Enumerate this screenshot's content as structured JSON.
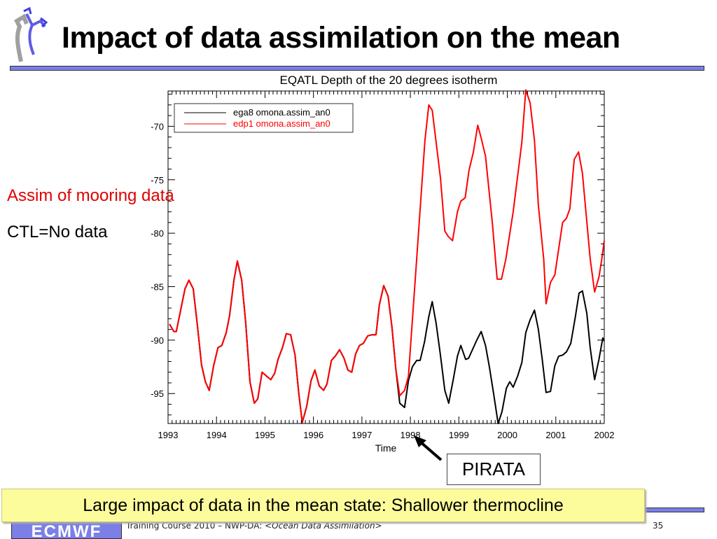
{
  "slide": {
    "title": "Impact of data assimilation on the mean",
    "label_assim": "Assim of mooring data",
    "label_ctl": "CTL=No data",
    "annotation": "PIRATA",
    "callout": "Large impact of data in the mean state: Shallower thermocline",
    "footer_prefix": "Training Course 2010 – NWP-DA: ",
    "footer_topic": "<Ocean Data Assimilation>",
    "page_number": "35",
    "logo_text": "ECMWF",
    "accent_color": "#7b7fe6"
  },
  "chart_data": {
    "type": "line",
    "title": "EQATL Depth of the 20 degrees isotherm",
    "xlabel": "Time",
    "ylabel": "",
    "xlim": [
      1993,
      2002
    ],
    "ylim": [
      -97.8,
      -66.7
    ],
    "xticks": [
      "1993",
      "1994",
      "1995",
      "1996",
      "1997",
      "1998",
      "1999",
      "2000",
      "2001",
      "2002"
    ],
    "yticks": [
      "-70",
      "-75",
      "-80",
      "-85",
      "-90",
      "-95"
    ],
    "grid": false,
    "legend_position": "top-left",
    "series": [
      {
        "name": "ega8 omona.assim_an0",
        "color": "#000000",
        "points": [
          [
            1993.03,
            -88.5
          ],
          [
            1993.12,
            -89.2
          ],
          [
            1993.17,
            -89.2
          ],
          [
            1993.26,
            -87.2
          ],
          [
            1993.35,
            -85.2
          ],
          [
            1993.43,
            -84.4
          ],
          [
            1993.52,
            -85.2
          ],
          [
            1993.61,
            -88.8
          ],
          [
            1993.69,
            -92.3
          ],
          [
            1993.77,
            -93.9
          ],
          [
            1993.85,
            -94.7
          ],
          [
            1993.94,
            -92.4
          ],
          [
            1994.03,
            -90.7
          ],
          [
            1994.11,
            -90.5
          ],
          [
            1994.2,
            -89.3
          ],
          [
            1994.27,
            -87.7
          ],
          [
            1994.36,
            -84.4
          ],
          [
            1994.43,
            -82.6
          ],
          [
            1994.52,
            -84.4
          ],
          [
            1994.6,
            -88.3
          ],
          [
            1994.69,
            -93.9
          ],
          [
            1994.78,
            -95.9
          ],
          [
            1994.85,
            -95.5
          ],
          [
            1994.94,
            -93.0
          ],
          [
            1995.04,
            -93.4
          ],
          [
            1995.12,
            -93.7
          ],
          [
            1995.2,
            -93.1
          ],
          [
            1995.27,
            -91.8
          ],
          [
            1995.36,
            -90.7
          ],
          [
            1995.44,
            -89.4
          ],
          [
            1995.53,
            -89.5
          ],
          [
            1995.62,
            -91.4
          ],
          [
            1995.7,
            -95.1
          ],
          [
            1995.77,
            -97.7
          ],
          [
            1995.86,
            -96.2
          ],
          [
            1995.95,
            -93.8
          ],
          [
            1996.03,
            -92.8
          ],
          [
            1996.12,
            -94.3
          ],
          [
            1996.21,
            -94.7
          ],
          [
            1996.28,
            -94.1
          ],
          [
            1996.37,
            -91.9
          ],
          [
            1996.45,
            -91.5
          ],
          [
            1996.54,
            -90.9
          ],
          [
            1996.63,
            -91.7
          ],
          [
            1996.71,
            -92.8
          ],
          [
            1996.79,
            -93.0
          ],
          [
            1996.87,
            -91.3
          ],
          [
            1996.95,
            -90.5
          ],
          [
            1997.03,
            -90.3
          ],
          [
            1997.12,
            -89.6
          ],
          [
            1997.21,
            -89.5
          ],
          [
            1997.29,
            -89.5
          ],
          [
            1997.36,
            -86.7
          ],
          [
            1997.45,
            -84.9
          ],
          [
            1997.54,
            -85.9
          ],
          [
            1997.62,
            -88.8
          ],
          [
            1997.7,
            -92.7
          ],
          [
            1997.78,
            -95.9
          ],
          [
            1997.88,
            -96.3
          ],
          [
            1997.96,
            -93.8
          ],
          [
            1998.04,
            -92.5
          ],
          [
            1998.13,
            -91.9
          ],
          [
            1998.2,
            -91.9
          ],
          [
            1998.29,
            -90.2
          ],
          [
            1998.38,
            -87.8
          ],
          [
            1998.45,
            -86.4
          ],
          [
            1998.53,
            -88.4
          ],
          [
            1998.62,
            -91.4
          ],
          [
            1998.71,
            -94.7
          ],
          [
            1998.79,
            -95.9
          ],
          [
            1998.88,
            -93.8
          ],
          [
            1998.97,
            -91.5
          ],
          [
            1999.04,
            -90.5
          ],
          [
            1999.14,
            -91.8
          ],
          [
            1999.2,
            -91.7
          ],
          [
            1999.29,
            -90.8
          ],
          [
            1999.37,
            -90.0
          ],
          [
            1999.46,
            -89.2
          ],
          [
            1999.55,
            -90.5
          ],
          [
            1999.63,
            -92.5
          ],
          [
            1999.72,
            -95.1
          ],
          [
            1999.81,
            -97.8
          ],
          [
            1999.89,
            -96.7
          ],
          [
            1999.98,
            -94.5
          ],
          [
            2000.05,
            -93.9
          ],
          [
            2000.12,
            -94.4
          ],
          [
            2000.21,
            -93.4
          ],
          [
            2000.3,
            -92.1
          ],
          [
            2000.38,
            -89.3
          ],
          [
            2000.47,
            -88.1
          ],
          [
            2000.56,
            -87.2
          ],
          [
            2000.64,
            -89.0
          ],
          [
            2000.72,
            -91.8
          ],
          [
            2000.8,
            -94.9
          ],
          [
            2000.89,
            -94.8
          ],
          [
            2000.98,
            -92.4
          ],
          [
            2001.06,
            -91.5
          ],
          [
            2001.14,
            -91.4
          ],
          [
            2001.22,
            -91.1
          ],
          [
            2001.31,
            -90.3
          ],
          [
            2001.4,
            -87.9
          ],
          [
            2001.48,
            -85.6
          ],
          [
            2001.55,
            -85.4
          ],
          [
            2001.64,
            -87.5
          ],
          [
            2001.71,
            -90.7
          ],
          [
            2001.8,
            -93.7
          ],
          [
            2001.89,
            -91.8
          ],
          [
            2001.97,
            -89.8
          ],
          [
            2002.0,
            -90.1
          ]
        ]
      },
      {
        "name": "edp1 omona.assim_an0",
        "color": "#ff0000",
        "points": [
          [
            1993.03,
            -88.5
          ],
          [
            1993.12,
            -89.2
          ],
          [
            1993.17,
            -89.2
          ],
          [
            1993.26,
            -87.2
          ],
          [
            1993.35,
            -85.2
          ],
          [
            1993.43,
            -84.4
          ],
          [
            1993.52,
            -85.2
          ],
          [
            1993.61,
            -88.8
          ],
          [
            1993.69,
            -92.3
          ],
          [
            1993.77,
            -93.9
          ],
          [
            1993.85,
            -94.7
          ],
          [
            1993.94,
            -92.4
          ],
          [
            1994.03,
            -90.7
          ],
          [
            1994.11,
            -90.5
          ],
          [
            1994.2,
            -89.3
          ],
          [
            1994.27,
            -87.7
          ],
          [
            1994.36,
            -84.4
          ],
          [
            1994.43,
            -82.6
          ],
          [
            1994.52,
            -84.4
          ],
          [
            1994.6,
            -88.3
          ],
          [
            1994.69,
            -93.9
          ],
          [
            1994.78,
            -95.9
          ],
          [
            1994.85,
            -95.5
          ],
          [
            1994.94,
            -93.0
          ],
          [
            1995.04,
            -93.4
          ],
          [
            1995.12,
            -93.7
          ],
          [
            1995.2,
            -93.1
          ],
          [
            1995.27,
            -91.8
          ],
          [
            1995.36,
            -90.7
          ],
          [
            1995.44,
            -89.4
          ],
          [
            1995.53,
            -89.5
          ],
          [
            1995.62,
            -91.4
          ],
          [
            1995.7,
            -95.1
          ],
          [
            1995.77,
            -97.7
          ],
          [
            1995.86,
            -96.2
          ],
          [
            1995.95,
            -93.8
          ],
          [
            1996.03,
            -92.8
          ],
          [
            1996.12,
            -94.3
          ],
          [
            1996.21,
            -94.7
          ],
          [
            1996.28,
            -94.1
          ],
          [
            1996.37,
            -91.9
          ],
          [
            1996.45,
            -91.5
          ],
          [
            1996.54,
            -90.9
          ],
          [
            1996.63,
            -91.7
          ],
          [
            1996.71,
            -92.8
          ],
          [
            1996.79,
            -93.0
          ],
          [
            1996.87,
            -91.3
          ],
          [
            1996.95,
            -90.5
          ],
          [
            1997.03,
            -90.3
          ],
          [
            1997.12,
            -89.6
          ],
          [
            1997.21,
            -89.5
          ],
          [
            1997.29,
            -89.5
          ],
          [
            1997.36,
            -86.7
          ],
          [
            1997.45,
            -84.9
          ],
          [
            1997.54,
            -85.9
          ],
          [
            1997.62,
            -88.8
          ],
          [
            1997.7,
            -92.7
          ],
          [
            1997.78,
            -95.2
          ],
          [
            1997.88,
            -94.7
          ],
          [
            1997.96,
            -93.4
          ],
          [
            1998.13,
            -82.4
          ],
          [
            1998.3,
            -71.3
          ],
          [
            1998.38,
            -68.0
          ],
          [
            1998.45,
            -68.5
          ],
          [
            1998.62,
            -74.8
          ],
          [
            1998.71,
            -79.8
          ],
          [
            1998.78,
            -80.3
          ],
          [
            1998.87,
            -80.7
          ],
          [
            1998.97,
            -78.0
          ],
          [
            1999.04,
            -77.0
          ],
          [
            1999.13,
            -76.7
          ],
          [
            1999.21,
            -74.1
          ],
          [
            1999.3,
            -72.4
          ],
          [
            1999.39,
            -69.9
          ],
          [
            1999.46,
            -71.1
          ],
          [
            1999.55,
            -72.8
          ],
          [
            1999.69,
            -79.0
          ],
          [
            1999.79,
            -84.3
          ],
          [
            1999.88,
            -84.3
          ],
          [
            1999.97,
            -82.4
          ],
          [
            2000.12,
            -78.0
          ],
          [
            2000.3,
            -71.5
          ],
          [
            2000.38,
            -66.6
          ],
          [
            2000.47,
            -67.8
          ],
          [
            2000.56,
            -71.3
          ],
          [
            2000.64,
            -77.4
          ],
          [
            2000.75,
            -82.4
          ],
          [
            2000.8,
            -86.6
          ],
          [
            2000.89,
            -84.6
          ],
          [
            2000.98,
            -83.9
          ],
          [
            2001.14,
            -79.0
          ],
          [
            2001.22,
            -78.6
          ],
          [
            2001.29,
            -77.7
          ],
          [
            2001.38,
            -73.1
          ],
          [
            2001.47,
            -72.4
          ],
          [
            2001.55,
            -74.4
          ],
          [
            2001.71,
            -82.4
          ],
          [
            2001.8,
            -85.5
          ],
          [
            2001.89,
            -84.1
          ],
          [
            2001.95,
            -82.4
          ],
          [
            2002.0,
            -80.7
          ]
        ]
      }
    ]
  }
}
